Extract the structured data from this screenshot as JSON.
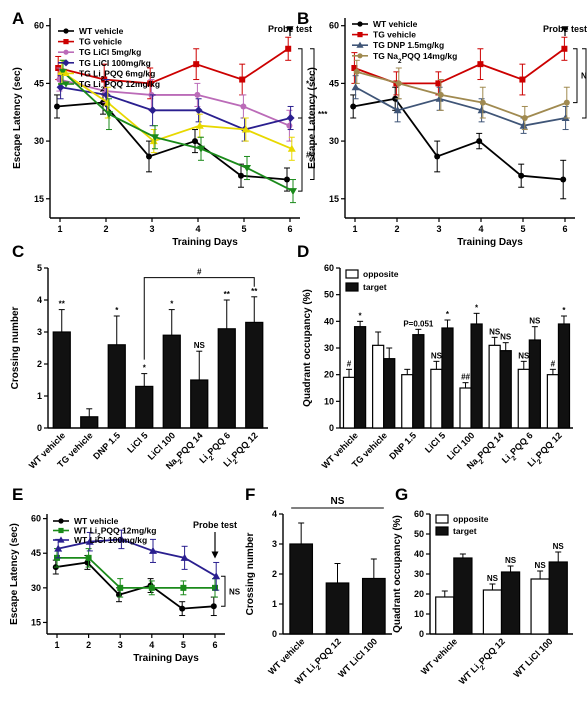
{
  "figure": {
    "panel_labels": [
      "A",
      "B",
      "C",
      "D",
      "E",
      "F",
      "G"
    ]
  },
  "chart_data": [
    {
      "id": "A",
      "type": "line",
      "xlabel": "Training Days",
      "ylabel": "Escape Latency (sec)",
      "x": [
        1,
        2,
        3,
        4,
        5,
        6
      ],
      "xticks": [
        "1",
        "2",
        "3",
        "4",
        "5",
        "6"
      ],
      "ylim": [
        10,
        62
      ],
      "yticks": [
        15,
        30,
        45,
        60
      ],
      "legend": "top-left",
      "annotation": "Probe test",
      "significance": [
        "*",
        "***",
        "##"
      ],
      "series": [
        {
          "name": "WT vehicle",
          "color": "#000000",
          "marker": "circle",
          "values": [
            39,
            40,
            26,
            30,
            21,
            20
          ],
          "err": [
            3,
            3,
            4,
            3,
            3,
            3
          ]
        },
        {
          "name": "TG vehicle",
          "color": "#cc0000",
          "marker": "square",
          "values": [
            49,
            46,
            45,
            50,
            46,
            54
          ],
          "err": [
            3,
            4,
            4,
            4,
            4,
            3
          ]
        },
        {
          "name": "TG LiCl 5mg/kg",
          "color": "#bb6bb8",
          "marker": "circle",
          "values": [
            46,
            43,
            42,
            42,
            39,
            34
          ],
          "err": [
            3,
            3,
            4,
            3,
            3,
            4
          ]
        },
        {
          "name": "TG LiCl 100mg/kg",
          "color": "#2a1f8f",
          "marker": "diamond",
          "values": [
            44,
            42,
            38,
            38,
            33,
            36
          ],
          "err": [
            3,
            4,
            4,
            3,
            3,
            3
          ]
        },
        {
          "name": "TG Li2PQQ 6mg/kg",
          "color": "#e8d800",
          "marker": "triangle",
          "values": [
            48,
            40,
            30,
            34,
            33,
            28
          ],
          "err": [
            3,
            4,
            3,
            3,
            3,
            3
          ]
        },
        {
          "name": "TG Li2PQQ 12mg/kg",
          "color": "#1a8a1a",
          "marker": "triangle-down",
          "values": [
            48,
            37,
            31,
            28,
            23,
            17
          ],
          "err": [
            3,
            4,
            3,
            3,
            3,
            3
          ]
        }
      ]
    },
    {
      "id": "B",
      "type": "line",
      "xlabel": "Training Days",
      "ylabel": "Escape Latency (sec)",
      "x": [
        1,
        2,
        3,
        4,
        5,
        6
      ],
      "xticks": [
        "1",
        "2",
        "3",
        "4",
        "5",
        "6"
      ],
      "ylim": [
        10,
        62
      ],
      "yticks": [
        15,
        30,
        45,
        60
      ],
      "legend": "top-left",
      "annotation": "Probe test",
      "significance": [
        "NS",
        "*",
        "***"
      ],
      "series": [
        {
          "name": "WT vehicle",
          "color": "#000000",
          "marker": "circle",
          "values": [
            39,
            41,
            26,
            30,
            21,
            20
          ],
          "err": [
            3,
            3,
            4,
            2,
            3,
            5
          ]
        },
        {
          "name": "TG vehicle",
          "color": "#cc0000",
          "marker": "square",
          "values": [
            49,
            45,
            45,
            50,
            46,
            54
          ],
          "err": [
            4,
            3,
            3,
            4,
            4,
            3
          ]
        },
        {
          "name": "TG DNP 1.5mg/kg",
          "color": "#3f5577",
          "marker": "triangle",
          "values": [
            44,
            38,
            41,
            38,
            34,
            36
          ],
          "err": [
            3,
            3,
            3,
            3,
            2,
            3
          ]
        },
        {
          "name": "TG Na2PQQ 14mg/kg",
          "color": "#a08a50",
          "marker": "circle",
          "values": [
            48,
            45,
            42,
            40,
            36,
            40
          ],
          "err": [
            3,
            4,
            4,
            4,
            3,
            4
          ]
        }
      ]
    },
    {
      "id": "C",
      "type": "bar",
      "ylabel": "Crossing number",
      "categories": [
        "WT vehicle",
        "TG vehicle",
        "DNP 1.5",
        "LiCl 5",
        "LiCl 100",
        "Na2PQQ 14",
        "Li2PQQ 6",
        "Li2PQQ 12"
      ],
      "values": [
        3.0,
        0.35,
        2.6,
        1.3,
        2.9,
        1.5,
        3.1,
        3.3
      ],
      "err": [
        0.7,
        0.25,
        0.9,
        0.4,
        0.8,
        0.9,
        0.9,
        0.8
      ],
      "labels": [
        "**",
        "",
        "*",
        "*",
        "*",
        "NS",
        "**",
        "**"
      ],
      "ylim": [
        0,
        5
      ],
      "yticks": [
        0,
        1,
        2,
        3,
        4,
        5
      ],
      "bracket_label": "#"
    },
    {
      "id": "D",
      "type": "bar",
      "ylabel": "Quadrant occupancy (%)",
      "categories": [
        "WT vehicle",
        "TG vehicle",
        "DNP 1.5",
        "LiCl 5",
        "LiCl 100",
        "Na2PQQ 14",
        "Li2PQQ 6",
        "Li2PQQ 12"
      ],
      "ylim": [
        0,
        60
      ],
      "yticks": [
        0,
        10,
        20,
        30,
        40,
        50,
        60
      ],
      "legend": "top-left",
      "series": [
        {
          "name": "opposite",
          "fill": "#ffffff",
          "values": [
            19,
            31,
            20,
            22,
            15,
            31,
            22,
            20
          ],
          "err": [
            3,
            5,
            2,
            3,
            2,
            3,
            3,
            2
          ],
          "labels": [
            "#",
            "",
            "",
            "NS",
            "##",
            "NS",
            "NS",
            "#"
          ]
        },
        {
          "name": "target",
          "fill": "#111111",
          "values": [
            38,
            26,
            35,
            37.5,
            39,
            29,
            33,
            39
          ],
          "err": [
            2,
            4,
            2,
            3,
            4,
            3,
            5,
            3
          ],
          "labels": [
            "*",
            "",
            "P=0.051",
            "*",
            "*",
            "NS",
            "NS",
            "*"
          ]
        }
      ]
    },
    {
      "id": "E",
      "type": "line",
      "xlabel": "Training Days",
      "ylabel": "Escape Latency (sec)",
      "x": [
        1,
        2,
        3,
        4,
        5,
        6
      ],
      "xticks": [
        "1",
        "2",
        "3",
        "4",
        "5",
        "6"
      ],
      "ylim": [
        10,
        62
      ],
      "yticks": [
        15,
        30,
        45,
        60
      ],
      "legend": "top-left",
      "annotation": "Probe test",
      "significance": [
        "NS"
      ],
      "series": [
        {
          "name": "WT vehicle",
          "color": "#000000",
          "marker": "circle",
          "values": [
            39,
            41,
            27,
            31,
            21,
            22
          ],
          "err": [
            3,
            3,
            3,
            3,
            3,
            4
          ]
        },
        {
          "name": "WT Li2PQQ 12mg/kg",
          "color": "#1a8a1a",
          "marker": "square",
          "values": [
            43,
            43,
            30,
            30,
            30,
            30
          ],
          "err": [
            4,
            4,
            4,
            3,
            3,
            4
          ]
        },
        {
          "name": "WT LiCl 100mg/kg",
          "color": "#2a1f8f",
          "marker": "triangle",
          "values": [
            47,
            50,
            51,
            46,
            43,
            35
          ],
          "err": [
            4,
            4,
            4,
            5,
            5,
            6
          ]
        }
      ]
    },
    {
      "id": "F",
      "type": "bar",
      "ylabel": "Crossing number",
      "categories": [
        "WT vehicle",
        "WT Li2PQQ 12",
        "WT LiCl 100"
      ],
      "values": [
        3.0,
        1.7,
        1.85
      ],
      "err": [
        0.7,
        0.65,
        0.65
      ],
      "ylim": [
        0,
        4
      ],
      "yticks": [
        0,
        1,
        2,
        3,
        4
      ],
      "bracket_label": "NS"
    },
    {
      "id": "G",
      "type": "bar",
      "ylabel": "Quadrant occupancy (%)",
      "categories": [
        "WT vehicle",
        "WT Li2PQQ 12",
        "WT LiCl 100"
      ],
      "ylim": [
        0,
        60
      ],
      "yticks": [
        0,
        10,
        20,
        30,
        40,
        50,
        60
      ],
      "legend": "top-left",
      "series": [
        {
          "name": "opposite",
          "fill": "#ffffff",
          "values": [
            18.5,
            22,
            27.5
          ],
          "err": [
            3,
            3,
            4
          ],
          "labels": [
            "",
            "NS",
            "NS"
          ]
        },
        {
          "name": "target",
          "fill": "#111111",
          "values": [
            38,
            31,
            36
          ],
          "err": [
            2,
            3,
            5
          ],
          "labels": [
            "",
            "NS",
            "NS"
          ]
        }
      ]
    }
  ]
}
